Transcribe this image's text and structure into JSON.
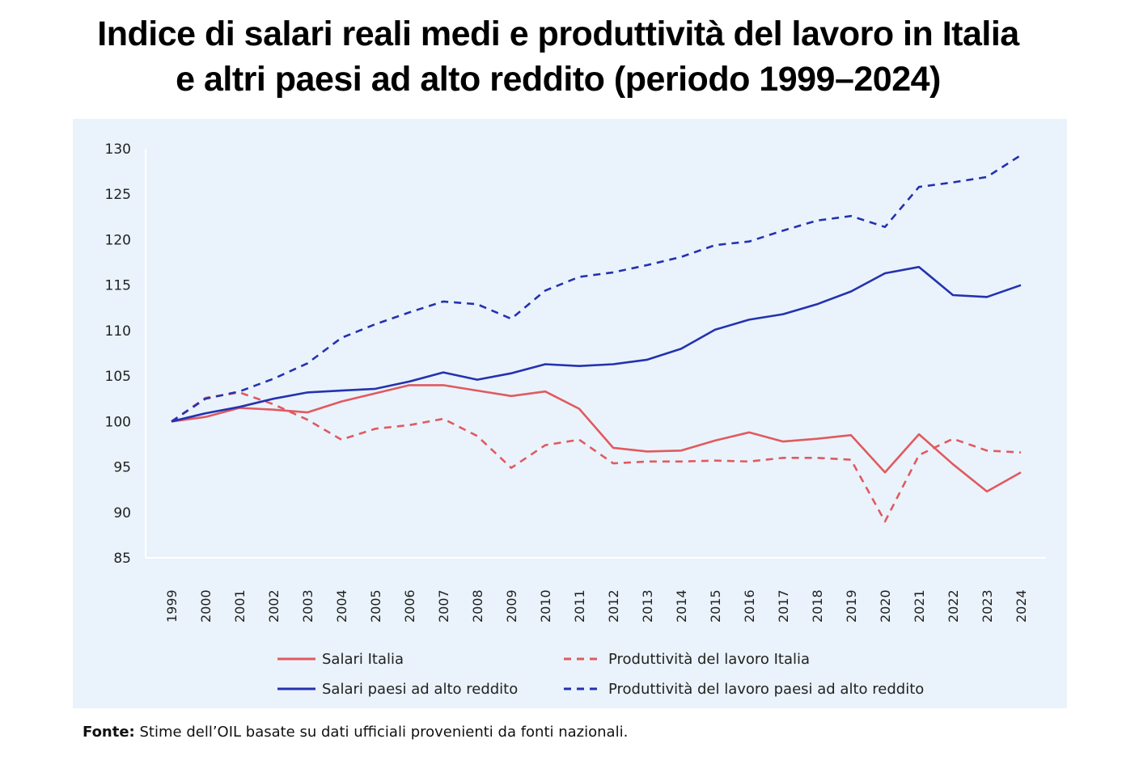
{
  "title_line1": "Indice di salari reali medi e produttività del lavoro in Italia",
  "title_line2": "e altri paesi ad alto reddito (periodo 1999–2024)",
  "source_label": "Fonte:",
  "source_text": "Stime dell’OIL basate su dati ufficiali provenienti da fonti nazionali.",
  "colors": {
    "panel_bg": "#eaf3fb",
    "italy": "#e05a60",
    "high_income": "#2432b0",
    "axis": "#ffffff"
  },
  "chart_data": {
    "type": "line",
    "title": "",
    "xlabel": "",
    "ylabel": "",
    "ylim": [
      85,
      130
    ],
    "yticks": [
      130,
      125,
      120,
      115,
      110,
      105,
      100,
      95,
      90,
      85
    ],
    "grid": false,
    "legend_position": "bottom",
    "x": [
      "1999",
      "2000",
      "2001",
      "2002",
      "2003",
      "2004",
      "2005",
      "2006",
      "2007",
      "2008",
      "2009",
      "2010",
      "2011",
      "2012",
      "2013",
      "2014",
      "2015",
      "2016",
      "2017",
      "2018",
      "2019",
      "2020",
      "2021",
      "2022",
      "2023",
      "2024"
    ],
    "series": [
      {
        "name": "Salari Italia",
        "color": "#e05a60",
        "dash": false,
        "values": [
          100.0,
          100.5,
          101.5,
          101.3,
          101.0,
          102.2,
          103.1,
          104.0,
          104.0,
          103.4,
          102.8,
          103.3,
          101.4,
          97.1,
          96.7,
          96.8,
          97.9,
          98.8,
          97.8,
          98.1,
          98.5,
          94.4,
          98.6,
          95.3,
          92.3,
          94.4
        ]
      },
      {
        "name": "Produttività del lavoro Italia",
        "color": "#e05a60",
        "dash": true,
        "values": [
          100.0,
          102.6,
          103.2,
          101.9,
          100.2,
          98.0,
          99.2,
          99.6,
          100.3,
          98.4,
          94.9,
          97.4,
          98.0,
          95.4,
          95.6,
          95.6,
          95.7,
          95.6,
          96.0,
          96.0,
          95.8,
          89.0,
          96.3,
          98.1,
          96.8,
          96.6
        ]
      },
      {
        "name": "Salari paesi ad alto reddito",
        "color": "#2432b0",
        "dash": false,
        "values": [
          100.0,
          100.9,
          101.6,
          102.5,
          103.2,
          103.4,
          103.6,
          104.4,
          105.4,
          104.6,
          105.3,
          106.3,
          106.1,
          106.3,
          106.8,
          108.0,
          110.1,
          111.2,
          111.8,
          112.9,
          114.3,
          116.3,
          117.0,
          113.9,
          113.7,
          115.0
        ]
      },
      {
        "name": "Produttività del lavoro paesi ad alto reddito",
        "color": "#2432b0",
        "dash": true,
        "values": [
          100.0,
          102.5,
          103.3,
          104.7,
          106.4,
          109.2,
          110.7,
          112.0,
          113.2,
          112.9,
          111.3,
          114.4,
          115.9,
          116.4,
          117.2,
          118.1,
          119.4,
          119.8,
          121.0,
          122.1,
          122.6,
          121.4,
          125.8,
          126.3,
          126.9,
          129.3
        ]
      }
    ]
  }
}
